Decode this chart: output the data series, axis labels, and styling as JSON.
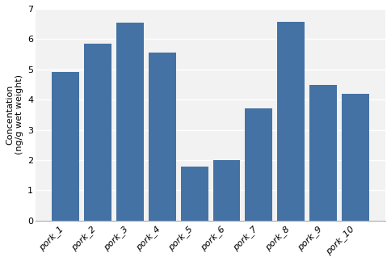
{
  "categories": [
    "pork_1",
    "pork_2",
    "pork_3",
    "pork_4",
    "pork_5",
    "pork_6",
    "pork_7",
    "pork_8",
    "pork_9",
    "pork_10"
  ],
  "values": [
    4.9,
    5.85,
    6.55,
    5.55,
    1.78,
    2.0,
    3.7,
    6.58,
    4.48,
    4.18
  ],
  "bar_color": "#4472A4",
  "ylabel": "Concentation\n(ng/g wet weight)",
  "ylim": [
    0,
    7
  ],
  "yticks": [
    0,
    1,
    2,
    3,
    4,
    5,
    6,
    7
  ],
  "ylabel_fontsize": 8,
  "tick_fontsize": 8,
  "bar_width": 0.85,
  "bg_color": "#F2F2F2",
  "plot_bg": "#FFFFFF",
  "spine_color": "#AAAAAA"
}
